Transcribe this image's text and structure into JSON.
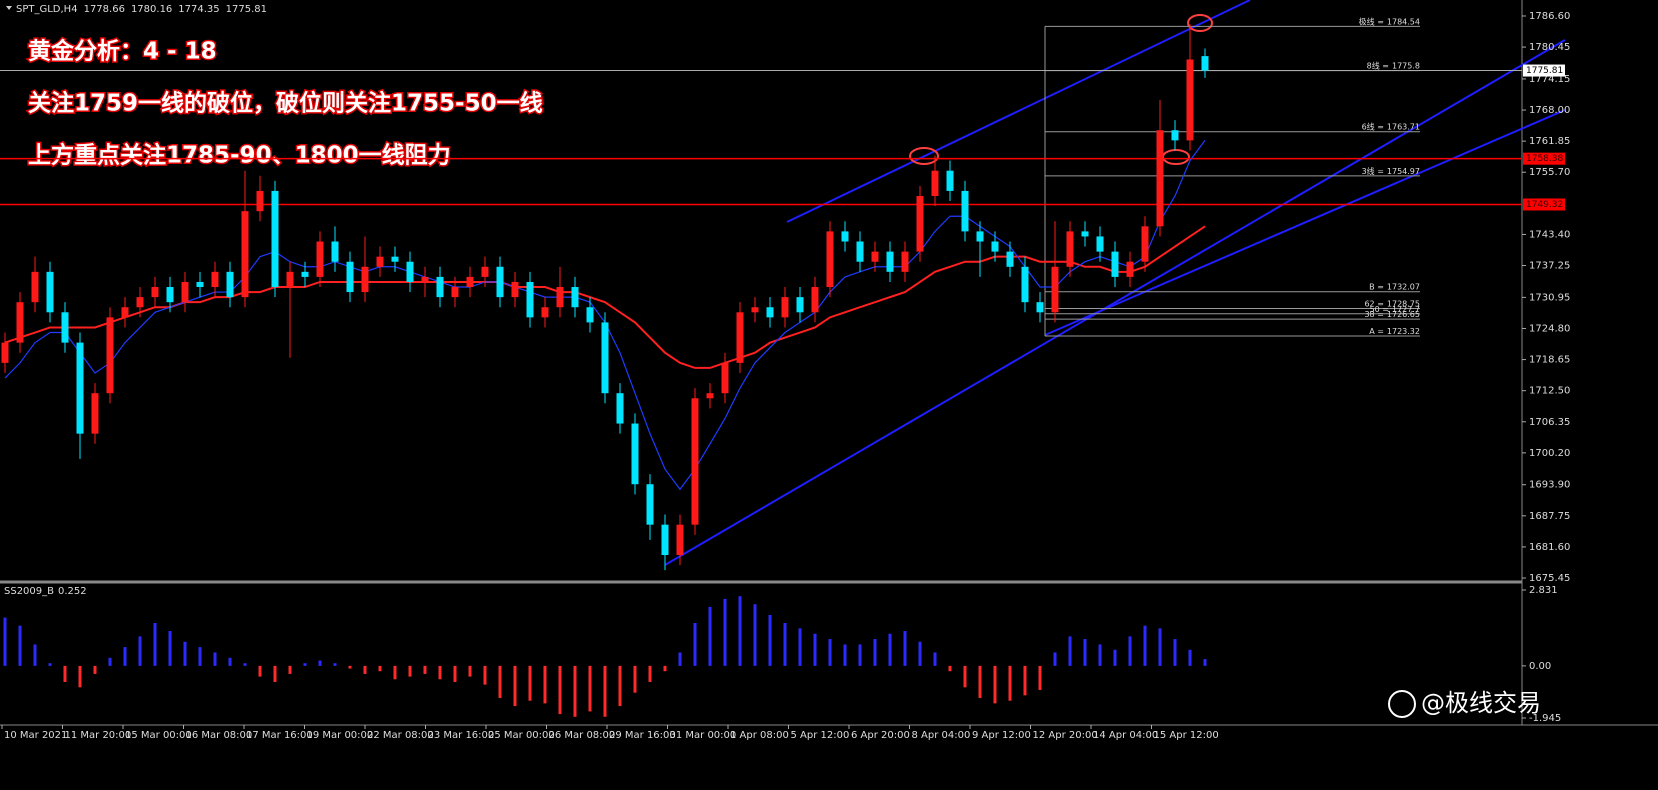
{
  "chart_data": [
    {
      "type": "candlestick",
      "symbol": "SPT_GLD,H4",
      "open": [
        1718,
        1722,
        1730,
        1736,
        1728,
        1722,
        1704,
        1712,
        1727,
        1729,
        1731,
        1733,
        1730,
        1734,
        1733,
        1736,
        1731,
        1748,
        1752,
        1733,
        1736,
        1735,
        1742,
        1738,
        1732,
        1737,
        1739,
        1738,
        1734,
        1735,
        1731,
        1733,
        1735,
        1737,
        1731,
        1734,
        1727,
        1729,
        1733,
        1729,
        1726,
        1712,
        1706,
        1694,
        1686,
        1680,
        1686,
        1711,
        1712,
        1718,
        1728,
        1729,
        1727,
        1731,
        1728,
        1733,
        1744,
        1742,
        1738,
        1740,
        1736,
        1740,
        1751,
        1756,
        1752,
        1744,
        1742,
        1740,
        1737,
        1730,
        1728,
        1737,
        1744,
        1743,
        1740,
        1735,
        1738,
        1745,
        1764,
        1762,
        1778.66
      ],
      "high": [
        1724,
        1732,
        1739,
        1738,
        1730,
        1724,
        1714,
        1729,
        1731,
        1733,
        1735,
        1735,
        1736,
        1736,
        1738,
        1738,
        1756,
        1755,
        1754,
        1738,
        1738,
        1744,
        1745,
        1740,
        1743,
        1741,
        1741,
        1740,
        1737,
        1737,
        1735,
        1737,
        1739,
        1739,
        1736,
        1736,
        1731,
        1737,
        1735,
        1731,
        1728,
        1714,
        1708,
        1696,
        1688,
        1688,
        1713,
        1714,
        1720,
        1730,
        1731,
        1731,
        1733,
        1733,
        1735,
        1746,
        1746,
        1744,
        1742,
        1742,
        1742,
        1753,
        1759,
        1758,
        1754,
        1746,
        1744,
        1742,
        1739,
        1732,
        1746,
        1746,
        1746,
        1745,
        1742,
        1740,
        1747,
        1770,
        1766,
        1785,
        1780.16
      ],
      "low": [
        1716,
        1720,
        1728,
        1726,
        1720,
        1699,
        1702,
        1710,
        1725,
        1727,
        1729,
        1728,
        1728,
        1731,
        1731,
        1729,
        1729,
        1746,
        1731,
        1719,
        1733,
        1733,
        1736,
        1730,
        1730,
        1735,
        1736,
        1732,
        1731,
        1729,
        1729,
        1731,
        1733,
        1729,
        1729,
        1725,
        1725,
        1727,
        1727,
        1724,
        1710,
        1704,
        1692,
        1683,
        1677,
        1678,
        1684,
        1709,
        1710,
        1716,
        1726,
        1725,
        1725,
        1726,
        1726,
        1731,
        1740,
        1736,
        1736,
        1734,
        1734,
        1738,
        1749,
        1750,
        1742,
        1735,
        1738,
        1735,
        1728,
        1726,
        1726,
        1735,
        1741,
        1738,
        1733,
        1733,
        1736,
        1743,
        1760,
        1760,
        1774.35
      ],
      "close": [
        1722,
        1730,
        1736,
        1728,
        1722,
        1704,
        1712,
        1727,
        1729,
        1731,
        1733,
        1730,
        1734,
        1733,
        1736,
        1731,
        1748,
        1752,
        1733,
        1736,
        1735,
        1742,
        1738,
        1732,
        1737,
        1739,
        1738,
        1734,
        1735,
        1731,
        1733,
        1735,
        1737,
        1731,
        1734,
        1727,
        1729,
        1733,
        1729,
        1726,
        1712,
        1706,
        1694,
        1686,
        1680,
        1686,
        1711,
        1712,
        1718,
        1728,
        1729,
        1727,
        1731,
        1728,
        1733,
        1744,
        1742,
        1738,
        1740,
        1736,
        1740,
        1751,
        1756,
        1752,
        1744,
        1742,
        1740,
        1737,
        1730,
        1728,
        1737,
        1744,
        1743,
        1740,
        1735,
        1738,
        1745,
        1764,
        1762,
        1778,
        1775.81
      ],
      "up_color": "#ff1a1a",
      "down_color": "#00e5ff",
      "ma_slow": {
        "color": "#ff2020",
        "values": [
          1722,
          1723,
          1724,
          1725,
          1725,
          1725,
          1725,
          1726,
          1727,
          1728,
          1729,
          1729,
          1730,
          1730,
          1731,
          1731,
          1732,
          1732,
          1733,
          1733,
          1733,
          1734,
          1734,
          1734,
          1734,
          1734,
          1734,
          1734,
          1734,
          1734,
          1734,
          1734,
          1734,
          1734,
          1733,
          1733,
          1733,
          1732,
          1732,
          1731,
          1730,
          1728,
          1726,
          1723,
          1720,
          1718,
          1717,
          1717,
          1718,
          1719,
          1720,
          1722,
          1723,
          1724,
          1725,
          1727,
          1728,
          1729,
          1730,
          1731,
          1732,
          1734,
          1736,
          1737,
          1738,
          1738,
          1739,
          1739,
          1739,
          1738,
          1738,
          1738,
          1737,
          1737,
          1736,
          1736,
          1737,
          1739,
          1741,
          1743,
          1745
        ]
      },
      "ma_fast": {
        "color": "#1e3cff",
        "values": [
          1715,
          1718,
          1722,
          1724,
          1724,
          1720,
          1716,
          1718,
          1722,
          1725,
          1728,
          1729,
          1730,
          1731,
          1732,
          1732,
          1735,
          1739,
          1740,
          1738,
          1737,
          1737,
          1738,
          1737,
          1736,
          1737,
          1737,
          1736,
          1735,
          1734,
          1733,
          1733,
          1734,
          1734,
          1733,
          1732,
          1731,
          1731,
          1731,
          1730,
          1726,
          1720,
          1712,
          1704,
          1697,
          1693,
          1697,
          1702,
          1707,
          1713,
          1718,
          1721,
          1724,
          1726,
          1728,
          1732,
          1735,
          1736,
          1737,
          1737,
          1737,
          1740,
          1744,
          1747,
          1747,
          1745,
          1743,
          1741,
          1737,
          1733,
          1733,
          1736,
          1738,
          1739,
          1738,
          1737,
          1739,
          1746,
          1751,
          1758,
          1762
        ]
      },
      "ylim": [
        1674.86,
        1789.76
      ],
      "yticks": [
        {
          "value": 1786.6,
          "label": "1786.60"
        },
        1780.45,
        1774.15,
        {
          "value": 1768,
          "label": "1768.00"
        },
        1761.85,
        {
          "value": 1755.7,
          "label": "1755.70"
        },
        {
          "value": 1743.4,
          "label": "1743.40"
        },
        1737.25,
        1730.95,
        {
          "value": 1724.8,
          "label": "1724.80"
        },
        1718.65,
        {
          "value": 1712.5,
          "label": "1712.50"
        },
        1706.35,
        {
          "value": 1700.2,
          "label": "1700.20"
        },
        {
          "value": 1693.9,
          "label": "1693.90"
        },
        1687.75,
        {
          "value": 1681.6,
          "label": "1681.60"
        },
        1675.45
      ],
      "x_labels": [
        "10 Mar 2021",
        "11 Mar 20:00",
        "15 Mar 00:00",
        "16 Mar 08:00",
        "17 Mar 16:00",
        "19 Mar 00:00",
        "22 Mar 08:00",
        "23 Mar 16:00",
        "25 Mar 00:00",
        "26 Mar 08:00",
        "29 Mar 16:00",
        "31 Mar 00:00",
        "1 Apr 08:00",
        "5 Apr 12:00",
        "6 Apr 20:00",
        "8 Apr 04:00",
        "9 Apr 12:00",
        "12 Apr 20:00",
        "14 Apr 04:00",
        "15 Apr 12:00"
      ],
      "hlines": [
        {
          "value": 1758.38,
          "color": "#ff0000"
        },
        {
          "value": 1749.32,
          "color": "#ff0000"
        }
      ],
      "levels": [
        {
          "name": "极线 =",
          "value": 1784.54
        },
        {
          "name": "8线 =",
          "value": 1775.8
        },
        {
          "name": "6线 =",
          "value": 1763.71
        },
        {
          "name": "3线 =",
          "value": 1754.97
        },
        {
          "name": "B =",
          "value": 1732.07
        },
        {
          "name": "62 =",
          "value": 1728.75
        },
        {
          "name": "50 =",
          "value": 1727.7
        },
        {
          "name": "38 =",
          "value": 1726.65
        },
        {
          "name": "A =",
          "value": 1723.32
        }
      ],
      "annotations": [
        "黄金分析：4 - 18",
        "关注1759一线的破位，破位则关注1755-50一线",
        "上方重点关注1785-90、1800一线阻力"
      ]
    },
    {
      "type": "bar",
      "name": "SS2009_B",
      "values": [
        1.8,
        1.5,
        0.8,
        0.1,
        -0.6,
        -0.8,
        -0.3,
        0.3,
        0.7,
        1.1,
        1.6,
        1.3,
        0.9,
        0.7,
        0.5,
        0.3,
        0.1,
        -0.4,
        -0.6,
        -0.3,
        0.1,
        0.2,
        0.1,
        -0.1,
        -0.3,
        -0.2,
        -0.5,
        -0.4,
        -0.3,
        -0.5,
        -0.6,
        -0.4,
        -0.7,
        -1.2,
        -1.5,
        -1.3,
        -1.4,
        -1.8,
        -1.9,
        -1.7,
        -1.9,
        -1.5,
        -1.0,
        -0.6,
        -0.2,
        0.5,
        1.6,
        2.2,
        2.5,
        2.6,
        2.3,
        1.9,
        1.6,
        1.4,
        1.2,
        1.0,
        0.8,
        0.8,
        1.0,
        1.2,
        1.3,
        0.9,
        0.5,
        -0.2,
        -0.8,
        -1.2,
        -1.4,
        -1.3,
        -1.1,
        -0.9,
        0.5,
        1.1,
        1.0,
        0.8,
        0.6,
        1.1,
        1.5,
        1.4,
        1.0,
        0.6,
        0.252
      ],
      "pos_color": "#2b2bff",
      "neg_color": "#ff2a2a",
      "ylim": [
        -2.206,
        3.055
      ],
      "yticks": [
        2.831,
        {
          "value": 0,
          "label": "0.00"
        },
        -1.945
      ]
    }
  ],
  "watermark": "@极线交易"
}
